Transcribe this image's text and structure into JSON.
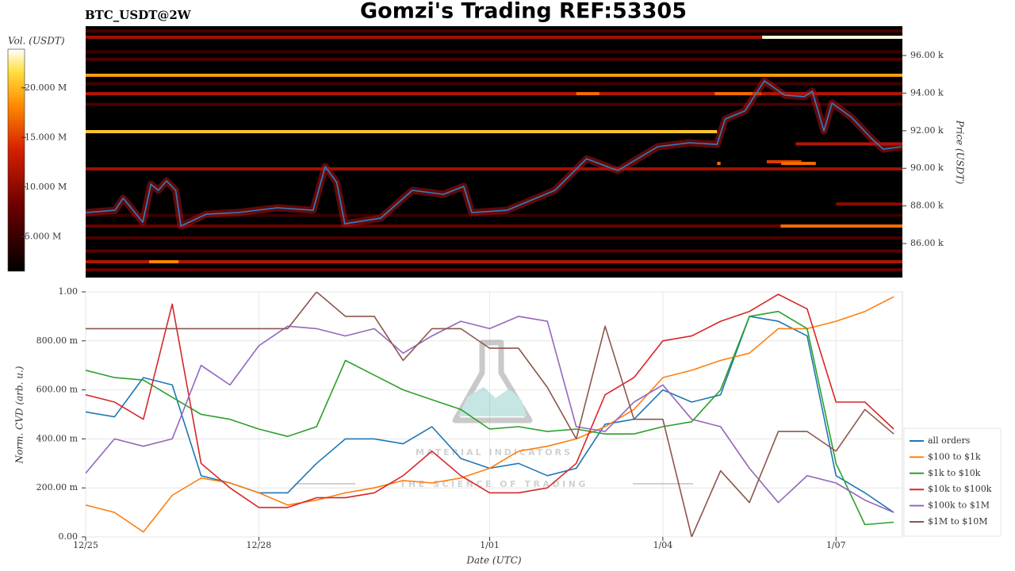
{
  "chart_data": [
    {
      "type": "heatmap",
      "title": "Gomzi's Trading REF:53305",
      "subtitle": "BTC_USDT@2W",
      "colorbar_label": "Vol. (USDT)",
      "y_label": "Price (USDT)",
      "xlim": [
        0,
        14.15
      ],
      "ylim": [
        84190,
        97560
      ],
      "yticks": [
        {
          "value": 86000,
          "label": "86.00 k"
        },
        {
          "value": 88000,
          "label": "88.00 k"
        },
        {
          "value": 90000,
          "label": "90.00 k"
        },
        {
          "value": 92000,
          "label": "92.00 k"
        },
        {
          "value": 94000,
          "label": "94.00 k"
        },
        {
          "value": 96000,
          "label": "96.00 k"
        }
      ],
      "clim": [
        1500000,
        23900000
      ],
      "cticks": [
        {
          "value": 5000000,
          "label": "5.000 M"
        },
        {
          "value": 10000000,
          "label": "10.000 M"
        },
        {
          "value": 15000000,
          "label": "15.000 M"
        },
        {
          "value": 20000000,
          "label": "20.000 M"
        }
      ],
      "bands": [
        {
          "price": 96970,
          "start": 0,
          "end": 11.72,
          "volume": 11000000
        },
        {
          "price": 96970,
          "start": 11.72,
          "end": 14.15,
          "volume": 23500000
        },
        {
          "price": 97300,
          "start": 0,
          "end": 14.15,
          "volume": 6000000
        },
        {
          "price": 96200,
          "start": 0,
          "end": 14.15,
          "volume": 5000000
        },
        {
          "price": 95800,
          "start": 0,
          "end": 14.15,
          "volume": 6500000
        },
        {
          "price": 94950,
          "start": 0,
          "end": 14.15,
          "volume": 19000000
        },
        {
          "price": 94500,
          "start": 0,
          "end": 14.15,
          "volume": 5500000
        },
        {
          "price": 93970,
          "start": 0,
          "end": 14.15,
          "volume": 12000000
        },
        {
          "price": 93970,
          "start": 8.5,
          "end": 8.9,
          "volume": 17000000
        },
        {
          "price": 93970,
          "start": 10.9,
          "end": 11.7,
          "volume": 17000000
        },
        {
          "price": 93400,
          "start": 0,
          "end": 14.15,
          "volume": 6000000
        },
        {
          "price": 91950,
          "start": 0,
          "end": 10.94,
          "volume": 20500000
        },
        {
          "price": 91300,
          "start": 12.3,
          "end": 14.15,
          "volume": 12000000
        },
        {
          "price": 90350,
          "start": 11.8,
          "end": 12.4,
          "volume": 15000000
        },
        {
          "price": 90260,
          "start": 10.94,
          "end": 11.0,
          "volume": 17000000
        },
        {
          "price": 90260,
          "start": 12.05,
          "end": 12.65,
          "volume": 17000000
        },
        {
          "price": 89970,
          "start": 0,
          "end": 14.15,
          "volume": 11000000
        },
        {
          "price": 88100,
          "start": 13.0,
          "end": 14.15,
          "volume": 10000000
        },
        {
          "price": 87500,
          "start": 0,
          "end": 14.15,
          "volume": 5000000
        },
        {
          "price": 86930,
          "start": 0,
          "end": 12.04,
          "volume": 8000000
        },
        {
          "price": 86930,
          "start": 12.04,
          "end": 14.15,
          "volume": 17000000
        },
        {
          "price": 86300,
          "start": 0,
          "end": 14.15,
          "volume": 6000000
        },
        {
          "price": 85600,
          "start": 0,
          "end": 14.15,
          "volume": 7000000
        },
        {
          "price": 85030,
          "start": 0,
          "end": 14.15,
          "volume": 12000000
        },
        {
          "price": 85030,
          "start": 1.1,
          "end": 1.61,
          "volume": 18000000
        },
        {
          "price": 84600,
          "start": 0,
          "end": 14.15,
          "volume": 8000000
        }
      ],
      "line": {
        "color": "#2f7fc1",
        "x": [
          0,
          0.51,
          0.65,
          0.99,
          1.13,
          1.26,
          1.4,
          1.56,
          1.65,
          2.09,
          2.64,
          3.32,
          3.94,
          4.15,
          4.35,
          4.49,
          5.11,
          5.66,
          6.2,
          6.55,
          6.69,
          7.3,
          8.13,
          8.68,
          9.22,
          9.91,
          10.46,
          10.94,
          11.08,
          11.42,
          11.76,
          12.11,
          12.45,
          12.59,
          12.79,
          12.93,
          13.27,
          13.62,
          13.82,
          14.14
        ],
        "values": [
          87650,
          87770,
          88410,
          87140,
          89160,
          88830,
          89330,
          88830,
          86930,
          87560,
          87650,
          87900,
          87770,
          90090,
          89250,
          87050,
          87350,
          88830,
          88620,
          89040,
          87650,
          87770,
          88830,
          90510,
          89880,
          91150,
          91360,
          91270,
          92620,
          93050,
          94650,
          93890,
          93810,
          94100,
          91990,
          93470,
          92710,
          91570,
          91020,
          91150
        ]
      }
    },
    {
      "type": "line",
      "y_label": "Norm. CVD (arb. u.)",
      "x_label": "Date (UTC)",
      "xlim": [
        0,
        14.15
      ],
      "xticks": [
        {
          "value": 0,
          "label": "12/25"
        },
        {
          "value": 3,
          "label": "12/28"
        },
        {
          "value": 7,
          "label": "1/01"
        },
        {
          "value": 10,
          "label": "1/04"
        },
        {
          "value": 13,
          "label": "1/07"
        }
      ],
      "ylim": [
        0,
        1
      ],
      "yticks": [
        {
          "value": 0,
          "label": "0.00"
        },
        {
          "value": 0.2,
          "label": "200.00 m"
        },
        {
          "value": 0.4,
          "label": "400.00 m"
        },
        {
          "value": 0.6,
          "label": "600.00 m"
        },
        {
          "value": 0.8,
          "label": "800.00 m"
        },
        {
          "value": 1,
          "label": "1.00"
        }
      ],
      "grid": true,
      "legend": "right",
      "watermark": {
        "name": "MATERIAL INDICATORS",
        "tagline": "THE SCIENCE OF TRADING"
      },
      "x": [
        0,
        0.5,
        1,
        1.5,
        2,
        2.5,
        3,
        3.5,
        4,
        4.5,
        5,
        5.5,
        6,
        6.5,
        7,
        7.5,
        8,
        8.5,
        9,
        9.5,
        10,
        10.5,
        11,
        11.5,
        12,
        12.5,
        13,
        13.5,
        14
      ],
      "series": [
        {
          "name": "all orders",
          "color": "#1f77b4",
          "values": [
            0.51,
            0.49,
            0.65,
            0.62,
            0.25,
            0.22,
            0.18,
            0.18,
            0.3,
            0.4,
            0.4,
            0.38,
            0.45,
            0.32,
            0.28,
            0.3,
            0.25,
            0.28,
            0.46,
            0.48,
            0.6,
            0.55,
            0.58,
            0.9,
            0.88,
            0.82,
            0.25,
            0.18,
            0.1
          ]
        },
        {
          "name": "$100 to $1k",
          "color": "#ff7f0e",
          "values": [
            0.13,
            0.1,
            0.02,
            0.17,
            0.24,
            0.22,
            0.18,
            0.13,
            0.15,
            0.18,
            0.2,
            0.23,
            0.22,
            0.24,
            0.28,
            0.35,
            0.37,
            0.4,
            0.45,
            0.52,
            0.65,
            0.68,
            0.72,
            0.75,
            0.85,
            0.85,
            0.88,
            0.92,
            0.98
          ]
        },
        {
          "name": "$1k to $10k",
          "color": "#2ca02c",
          "values": [
            0.68,
            0.65,
            0.64,
            0.57,
            0.5,
            0.48,
            0.44,
            0.41,
            0.45,
            0.72,
            0.66,
            0.6,
            0.56,
            0.52,
            0.44,
            0.45,
            0.43,
            0.44,
            0.42,
            0.42,
            0.45,
            0.47,
            0.6,
            0.9,
            0.92,
            0.85,
            0.3,
            0.05,
            0.06
          ]
        },
        {
          "name": "$10k to $100k",
          "color": "#d62728",
          "values": [
            0.58,
            0.55,
            0.48,
            0.95,
            0.3,
            0.2,
            0.12,
            0.12,
            0.16,
            0.16,
            0.18,
            0.25,
            0.35,
            0.25,
            0.18,
            0.18,
            0.2,
            0.3,
            0.58,
            0.65,
            0.8,
            0.82,
            0.88,
            0.92,
            0.99,
            0.93,
            0.55,
            0.55,
            0.44
          ]
        },
        {
          "name": "$100k to $1M",
          "color": "#9467bd",
          "values": [
            0.26,
            0.4,
            0.37,
            0.4,
            0.7,
            0.62,
            0.78,
            0.86,
            0.85,
            0.82,
            0.85,
            0.75,
            0.82,
            0.88,
            0.85,
            0.9,
            0.88,
            0.45,
            0.43,
            0.55,
            0.62,
            0.48,
            0.45,
            0.28,
            0.14,
            0.25,
            0.22,
            0.15,
            0.1
          ]
        },
        {
          "name": "$1M to $10M",
          "color": "#8c564b",
          "values": [
            0.85,
            0.85,
            0.85,
            0.85,
            0.85,
            0.85,
            0.85,
            0.85,
            1.0,
            0.9,
            0.9,
            0.72,
            0.85,
            0.85,
            0.77,
            0.77,
            0.61,
            0.4,
            0.86,
            0.48,
            0.48,
            0.0,
            0.27,
            0.14,
            0.43,
            0.43,
            0.35,
            0.52,
            0.42
          ]
        }
      ]
    }
  ]
}
